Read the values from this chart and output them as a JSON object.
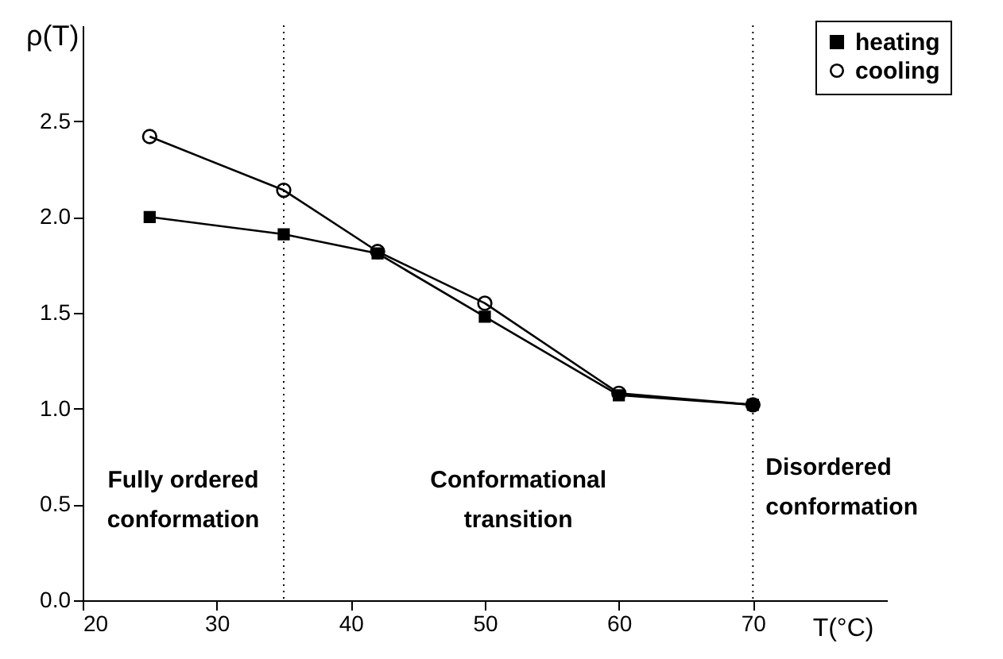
{
  "chart_data": {
    "type": "line",
    "xlabel": "T(°C)",
    "ylabel": "ρ(T)",
    "x": [
      25,
      35,
      42,
      50,
      60,
      70
    ],
    "series": [
      {
        "name": "heating",
        "color": "#000000",
        "marker": "square",
        "values": [
          2.0,
          1.91,
          1.81,
          1.48,
          1.07,
          1.02
        ]
      },
      {
        "name": "cooling",
        "color": "#000000",
        "marker": "circle",
        "values": [
          2.42,
          2.14,
          1.82,
          1.55,
          1.08,
          1.02
        ]
      }
    ],
    "xlim": [
      20,
      80
    ],
    "xticks": [
      20,
      30,
      40,
      50,
      60,
      70
    ],
    "ylim": [
      0,
      3
    ],
    "yticks": [
      {
        "value": 0,
        "label": "0.0"
      },
      0.5,
      {
        "value": 1,
        "label": "1.0"
      },
      1.5,
      {
        "value": 2,
        "label": "2.0"
      },
      2.5
    ],
    "ref_lines": [
      {
        "axis": "x",
        "value": 35,
        "line_style": "dotted"
      },
      {
        "axis": "x",
        "value": 70,
        "line_style": "dotted"
      }
    ],
    "annotations": [
      "Fully ordered\nconformation",
      "Conformational\ntransition",
      "Disordered\nconformation"
    ],
    "legend": "top right",
    "grid": false,
    "line_style": "solid"
  }
}
